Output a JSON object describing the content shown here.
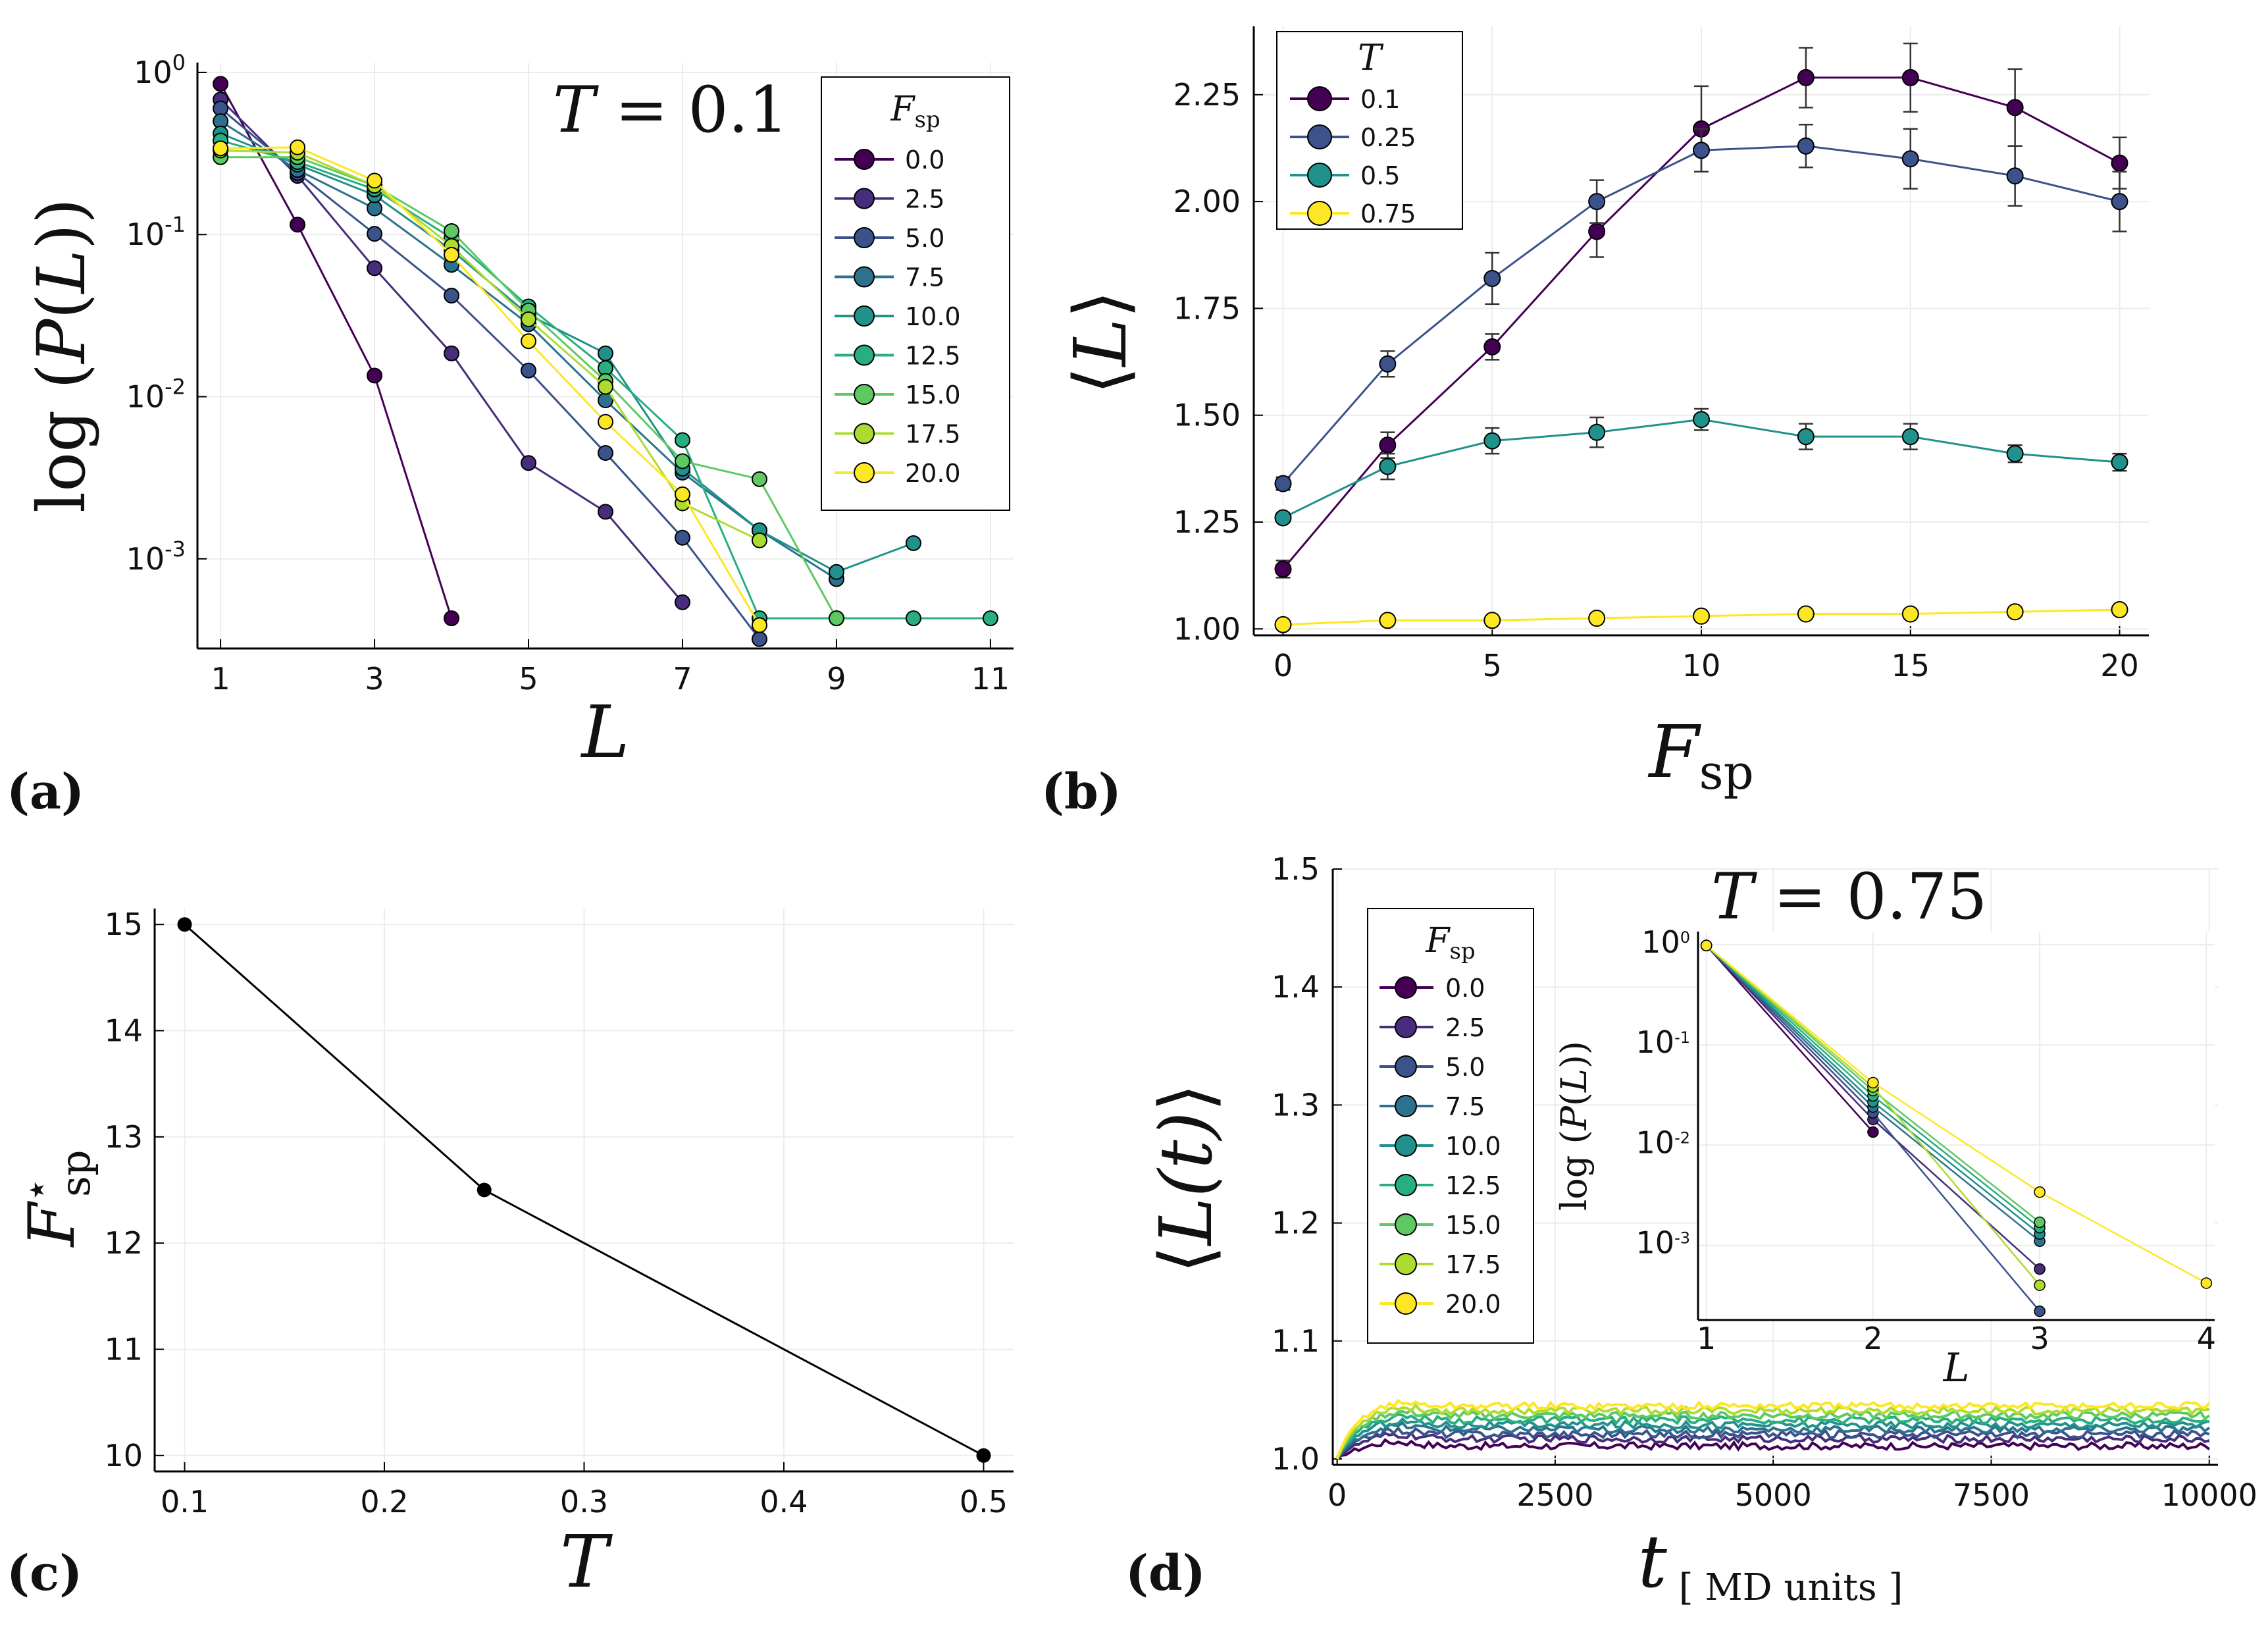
{
  "colors": {
    "viridis9": [
      "#440154",
      "#472D7B",
      "#3B528B",
      "#2C728E",
      "#21918C",
      "#28AE80",
      "#5EC962",
      "#ADDC30",
      "#FDE725"
    ],
    "viridis4": [
      "#440154",
      "#3B528B",
      "#21918C",
      "#FDE725"
    ],
    "black": "#000000",
    "grid": "#ececec",
    "errbar": "#333333"
  },
  "chart_data": [
    {
      "panel": "a",
      "type": "line",
      "yscale": "log",
      "annotation_lhs": "T",
      "annotation_rhs": "0.1",
      "xlabel": "L",
      "ylabel_fn": "log",
      "ylabel_inner": "P(L)",
      "ylabel_var": "L",
      "legend_title_main": "F",
      "legend_title_sub": "sp",
      "legend_position": "top-right",
      "panel_label": "(a)",
      "xlim": [
        0.7,
        11.3
      ],
      "ylim": [
        0.00028,
        1.15
      ],
      "xticks": [
        1,
        3,
        5,
        7,
        9,
        11
      ],
      "xtick_labels": [
        "1",
        "3",
        "5",
        "7",
        "9",
        "11"
      ],
      "yticks": [
        1,
        0.1,
        0.01,
        0.001
      ],
      "ytick_labels": [
        {
          "base": "10",
          "exp": "0"
        },
        {
          "base": "10",
          "exp": "-1"
        },
        {
          "base": "10",
          "exp": "-2"
        },
        {
          "base": "10",
          "exp": "-3"
        }
      ],
      "series": [
        {
          "name": "0.0",
          "points": [
            [
              1,
              0.85
            ],
            [
              2,
              0.115
            ],
            [
              3,
              0.0135
            ],
            [
              4,
              0.00043
            ]
          ]
        },
        {
          "name": "2.5",
          "points": [
            [
              1,
              0.68
            ],
            [
              2,
              0.23
            ],
            [
              3,
              0.062
            ],
            [
              4,
              0.0185
            ],
            [
              5,
              0.0039
            ],
            [
              6,
              0.00195
            ],
            [
              7,
              0.00054
            ]
          ]
        },
        {
          "name": "5.0",
          "points": [
            [
              1,
              0.6
            ],
            [
              2,
              0.24
            ],
            [
              3,
              0.101
            ],
            [
              4,
              0.042
            ],
            [
              5,
              0.0145
            ],
            [
              6,
              0.0045
            ],
            [
              7,
              0.00135
            ],
            [
              8,
              0.00032
            ]
          ]
        },
        {
          "name": "7.5",
          "points": [
            [
              1,
              0.5
            ],
            [
              2,
              0.25
            ],
            [
              3,
              0.145
            ],
            [
              4,
              0.065
            ],
            [
              5,
              0.028
            ],
            [
              6,
              0.0095
            ],
            [
              7,
              0.0034
            ],
            [
              8,
              0.0015
            ],
            [
              9,
              0.00075
            ]
          ]
        },
        {
          "name": "10.0",
          "points": [
            [
              1,
              0.42
            ],
            [
              2,
              0.27
            ],
            [
              3,
              0.175
            ],
            [
              4,
              0.08
            ],
            [
              5,
              0.032
            ],
            [
              6,
              0.0185
            ],
            [
              7,
              0.0036
            ],
            [
              8,
              0.0015
            ],
            [
              9,
              0.00083
            ],
            [
              10,
              0.00125
            ]
          ]
        },
        {
          "name": "12.5",
          "points": [
            [
              1,
              0.38
            ],
            [
              2,
              0.28
            ],
            [
              3,
              0.19
            ],
            [
              4,
              0.095
            ],
            [
              5,
              0.036
            ],
            [
              6,
              0.015
            ],
            [
              7,
              0.0054
            ],
            [
              8,
              0.00043
            ],
            [
              9,
              0.00043
            ],
            [
              10,
              0.00043
            ],
            [
              11,
              0.00043
            ]
          ]
        },
        {
          "name": "15.0",
          "points": [
            [
              1,
              0.3
            ],
            [
              2,
              0.3
            ],
            [
              3,
              0.2
            ],
            [
              4,
              0.105
            ],
            [
              5,
              0.034
            ],
            [
              6,
              0.0125
            ],
            [
              7,
              0.004
            ],
            [
              8,
              0.0031
            ],
            [
              9,
              0.00043
            ]
          ]
        },
        {
          "name": "17.5",
          "points": [
            [
              1,
              0.33
            ],
            [
              2,
              0.32
            ],
            [
              3,
              0.2
            ],
            [
              4,
              0.085
            ],
            [
              5,
              0.03
            ],
            [
              6,
              0.0115
            ],
            [
              7,
              0.0022
            ],
            [
              8,
              0.0013
            ]
          ]
        },
        {
          "name": "20.0",
          "points": [
            [
              1,
              0.34
            ],
            [
              2,
              0.345
            ],
            [
              3,
              0.215
            ],
            [
              4,
              0.075
            ],
            [
              5,
              0.022
            ],
            [
              6,
              0.007
            ],
            [
              7,
              0.0025
            ],
            [
              8,
              0.00039
            ]
          ]
        }
      ]
    },
    {
      "panel": "b",
      "type": "line",
      "xlabel_main": "F",
      "xlabel_sub": "sp",
      "ylabel": "L",
      "legend_title": "T",
      "legend_position": "top-left",
      "panel_label": "(b)",
      "xlim": [
        -0.7,
        20.7
      ],
      "ylim": [
        0.985,
        2.41
      ],
      "xticks": [
        0,
        5,
        10,
        15,
        20
      ],
      "xtick_labels": [
        "0",
        "5",
        "10",
        "15",
        "20"
      ],
      "yticks": [
        1.0,
        1.25,
        1.5,
        1.75,
        2.0,
        2.25
      ],
      "ytick_labels": [
        "1.00",
        "1.25",
        "1.50",
        "1.75",
        "2.00",
        "2.25"
      ],
      "x": [
        0,
        2.5,
        5,
        7.5,
        10,
        12.5,
        15,
        17.5,
        20
      ],
      "series": [
        {
          "name": "0.1",
          "values": [
            1.14,
            1.43,
            1.66,
            1.93,
            2.17,
            2.29,
            2.29,
            2.22,
            2.09
          ],
          "errors": [
            0.02,
            0.03,
            0.03,
            0.06,
            0.1,
            0.07,
            0.08,
            0.09,
            0.06
          ]
        },
        {
          "name": "0.25",
          "values": [
            1.34,
            1.62,
            1.82,
            2.0,
            2.12,
            2.13,
            2.1,
            2.06,
            2.0
          ],
          "errors": [
            0.015,
            0.03,
            0.06,
            0.05,
            0.05,
            0.05,
            0.07,
            0.07,
            0.07
          ]
        },
        {
          "name": "0.5",
          "values": [
            1.26,
            1.38,
            1.44,
            1.46,
            1.49,
            1.45,
            1.45,
            1.41,
            1.39
          ],
          "errors": [
            0.01,
            0.03,
            0.03,
            0.035,
            0.025,
            0.03,
            0.03,
            0.02,
            0.02
          ]
        },
        {
          "name": "0.75",
          "values": [
            1.01,
            1.02,
            1.02,
            1.025,
            1.03,
            1.035,
            1.035,
            1.04,
            1.045
          ],
          "errors": [
            0.008,
            0.008,
            0.008,
            0.008,
            0.008,
            0.008,
            0.008,
            0.008,
            0.008
          ]
        }
      ]
    },
    {
      "panel": "c",
      "type": "line",
      "xlabel": "T",
      "ylabel_main": "F",
      "ylabel_sup": "⋆",
      "ylabel_sub": "sp",
      "panel_label": "(c)",
      "xlim": [
        0.085,
        0.515
      ],
      "ylim": [
        9.85,
        15.15
      ],
      "xticks": [
        0.1,
        0.2,
        0.3,
        0.4,
        0.5
      ],
      "xtick_labels": [
        "0.1",
        "0.2",
        "0.3",
        "0.4",
        "0.5"
      ],
      "yticks": [
        10,
        11,
        12,
        13,
        14,
        15
      ],
      "ytick_labels": [
        "10",
        "11",
        "12",
        "13",
        "14",
        "15"
      ],
      "x": [
        0.1,
        0.25,
        0.5
      ],
      "values": [
        15,
        12.5,
        10
      ]
    },
    {
      "panel": "d",
      "type": "line",
      "annotation_lhs": "T",
      "annotation_rhs": "0.75",
      "xlabel_main": "t",
      "xlabel_sub": "[ MD units ]",
      "ylabel": "L(t)",
      "legend_title_main": "F",
      "legend_title_sub": "sp",
      "legend_position": "top-left",
      "panel_label": "(d)",
      "xlim": [
        -50,
        10100
      ],
      "ylim": [
        0.995,
        1.5
      ],
      "xticks": [
        0,
        2500,
        5000,
        7500,
        10000
      ],
      "xtick_labels": [
        "0",
        "2500",
        "5000",
        "7500",
        "10000"
      ],
      "yticks": [
        1.0,
        1.1,
        1.2,
        1.3,
        1.4,
        1.5
      ],
      "ytick_labels": [
        "1.0",
        "1.1",
        "1.2",
        "1.3",
        "1.4",
        "1.5"
      ],
      "series": [
        {
          "name": "0.0",
          "plateau": 1.011
        },
        {
          "name": "2.5",
          "plateau": 1.017
        },
        {
          "name": "5.0",
          "plateau": 1.021
        },
        {
          "name": "7.5",
          "plateau": 1.025
        },
        {
          "name": "10.0",
          "plateau": 1.029
        },
        {
          "name": "12.5",
          "plateau": 1.033
        },
        {
          "name": "15.0",
          "plateau": 1.037
        },
        {
          "name": "17.5",
          "plateau": 1.041
        },
        {
          "name": "20.0",
          "plateau": 1.045
        }
      ],
      "inset": {
        "type": "line",
        "yscale": "log",
        "xlabel": "L",
        "ylabel_fn": "log",
        "ylabel_inner": "P(L)",
        "ylabel_var": "L",
        "xlim": [
          0.95,
          4.05
        ],
        "ylim": [
          0.00018,
          1.35
        ],
        "xticks": [
          1,
          2,
          3,
          4
        ],
        "xtick_labels": [
          "1",
          "2",
          "3",
          "4"
        ],
        "yticks": [
          1,
          0.1,
          0.01,
          0.001
        ],
        "ytick_labels": [
          {
            "base": "10",
            "exp": "0"
          },
          {
            "base": "10",
            "exp": "-1"
          },
          {
            "base": "10",
            "exp": "-2"
          },
          {
            "base": "10",
            "exp": "-3"
          }
        ],
        "series": [
          {
            "name": "0.0",
            "points": [
              [
                1,
                0.98
              ],
              [
                2,
                0.0135
              ]
            ]
          },
          {
            "name": "2.5",
            "points": [
              [
                1,
                0.98
              ],
              [
                2,
                0.018
              ],
              [
                3,
                0.00058
              ]
            ]
          },
          {
            "name": "5.0",
            "points": [
              [
                1,
                0.98
              ],
              [
                2,
                0.021
              ],
              [
                3,
                0.00022
              ]
            ]
          },
          {
            "name": "7.5",
            "points": [
              [
                1,
                0.98
              ],
              [
                2,
                0.024
              ],
              [
                3,
                0.0011
              ]
            ]
          },
          {
            "name": "10.0",
            "points": [
              [
                1,
                0.98
              ],
              [
                2,
                0.027
              ],
              [
                3,
                0.0013
              ]
            ]
          },
          {
            "name": "12.5",
            "points": [
              [
                1,
                0.98
              ],
              [
                2,
                0.031
              ],
              [
                3,
                0.0015
              ]
            ]
          },
          {
            "name": "15.0",
            "points": [
              [
                1,
                0.98
              ],
              [
                2,
                0.035
              ],
              [
                3,
                0.0017
              ]
            ]
          },
          {
            "name": "17.5",
            "points": [
              [
                1,
                0.98
              ],
              [
                2,
                0.038
              ],
              [
                3,
                0.0004
              ]
            ]
          },
          {
            "name": "20.0",
            "points": [
              [
                1,
                0.98
              ],
              [
                2,
                0.042
              ],
              [
                3,
                0.0034
              ],
              [
                4,
                0.00042
              ]
            ]
          }
        ]
      }
    }
  ]
}
